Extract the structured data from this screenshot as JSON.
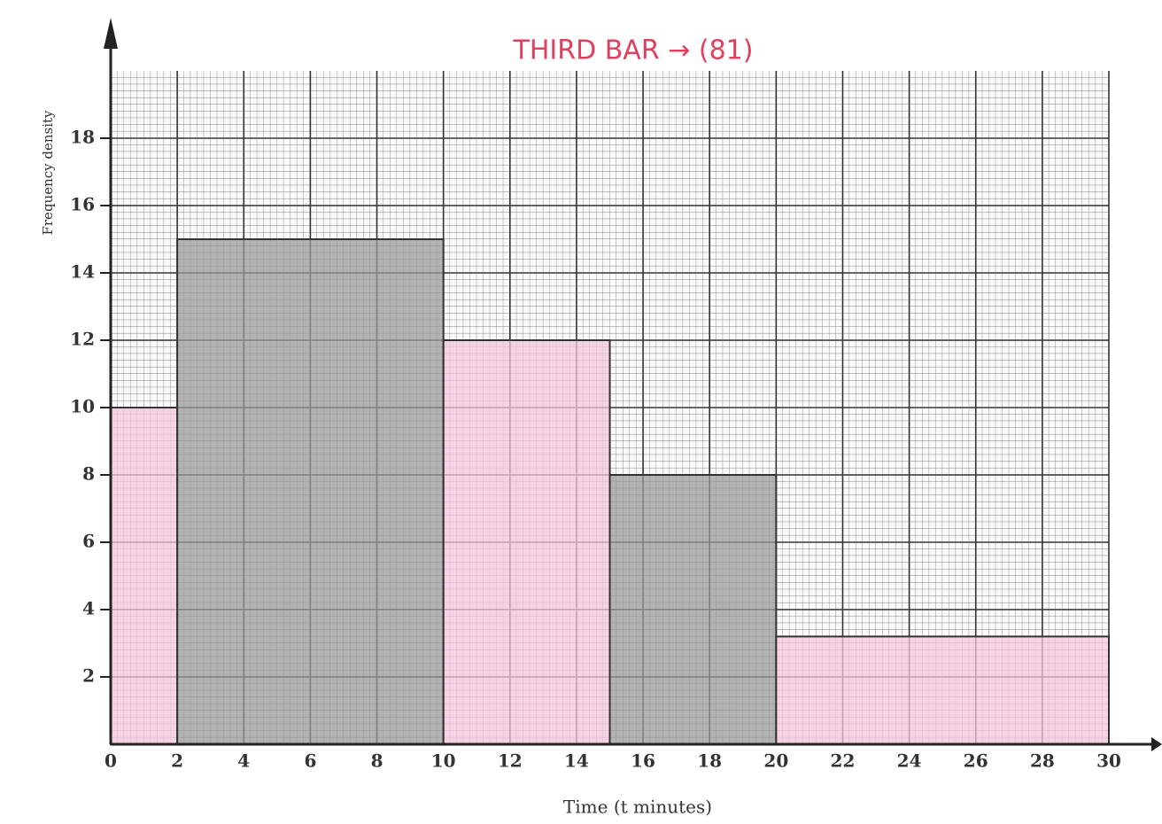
{
  "chart_data": {
    "type": "histogram",
    "x_label": "Time (t minutes)",
    "y_label": "Frequency density",
    "annotations": [
      "THIRD BAR → (81)"
    ],
    "bins": [
      0,
      2,
      10,
      15,
      20,
      30
    ],
    "values": [
      10,
      15,
      12,
      8,
      3.2
    ],
    "colors": [
      "#f3c6dc",
      "#9a9a9a",
      "#f3c6dc",
      "#9a9a9a",
      "#f3c6dc"
    ],
    "xlim": [
      0,
      30
    ],
    "xticks": [
      0,
      2,
      4,
      6,
      8,
      10,
      12,
      14,
      16,
      18,
      20,
      22,
      24,
      26,
      28,
      30
    ],
    "ylim": [
      0,
      20
    ],
    "yticks": [
      2,
      4,
      6,
      8,
      10,
      12,
      14,
      16,
      18
    ],
    "grid": true
  }
}
